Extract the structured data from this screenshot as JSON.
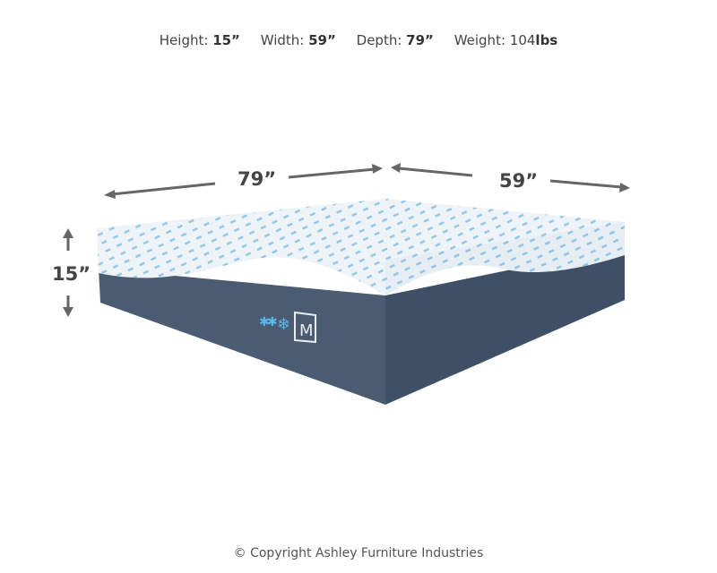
{
  "specs": {
    "height_label": "Height:",
    "height_value": "15”",
    "width_label": "Width:",
    "width_value": "59”",
    "depth_label": "Depth:",
    "depth_value": "79”",
    "weight_label": "Weight:",
    "weight_value": "104",
    "weight_unit": "lbs"
  },
  "dimensions": {
    "length": "79”",
    "width": "59”",
    "height": "15”"
  },
  "logo": {
    "letter": "M"
  },
  "copyright": "© Copyright Ashley Furniture Industries",
  "colors": {
    "cover": "#eef4f8",
    "pattern": "#3a9ad6",
    "base": "#44546a",
    "arrow": "#666666"
  }
}
